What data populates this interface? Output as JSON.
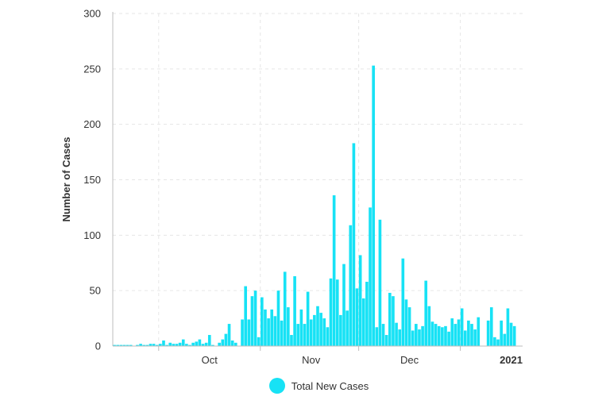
{
  "chart_data": {
    "type": "bar",
    "title": "",
    "xlabel": "",
    "ylabel": "Number of Cases",
    "ylim": [
      0,
      300
    ],
    "yticks": [
      0,
      50,
      100,
      150,
      200,
      250,
      300
    ],
    "x_start": "2020-09-17",
    "x_end": "2021-01-20",
    "x_ticks": [
      {
        "label": "Oct",
        "date": "2020-10-01",
        "bold": false
      },
      {
        "label": "Nov",
        "date": "2020-11-01",
        "bold": false
      },
      {
        "label": "Dec",
        "date": "2020-12-01",
        "bold": false
      },
      {
        "label": "2021",
        "date": "2021-01-01",
        "bold": true
      }
    ],
    "grid": true,
    "legend_position": "bottom",
    "series": [
      {
        "name": "Total New Cases",
        "color": "#17e2f5",
        "points": [
          [
            "2020-09-17",
            1
          ],
          [
            "2020-09-18",
            1
          ],
          [
            "2020-09-19",
            1
          ],
          [
            "2020-09-20",
            1
          ],
          [
            "2020-09-21",
            1
          ],
          [
            "2020-09-22",
            1
          ],
          [
            "2020-09-23",
            0
          ],
          [
            "2020-09-24",
            1
          ],
          [
            "2020-09-25",
            2
          ],
          [
            "2020-09-26",
            1
          ],
          [
            "2020-09-27",
            1
          ],
          [
            "2020-09-28",
            2
          ],
          [
            "2020-09-29",
            2
          ],
          [
            "2020-09-30",
            1
          ],
          [
            "2020-10-01",
            2
          ],
          [
            "2020-10-02",
            5
          ],
          [
            "2020-10-03",
            1
          ],
          [
            "2020-10-04",
            3
          ],
          [
            "2020-10-05",
            2
          ],
          [
            "2020-10-06",
            2
          ],
          [
            "2020-10-07",
            3
          ],
          [
            "2020-10-08",
            6
          ],
          [
            "2020-10-09",
            2
          ],
          [
            "2020-10-10",
            1
          ],
          [
            "2020-10-11",
            3
          ],
          [
            "2020-10-12",
            4
          ],
          [
            "2020-10-13",
            6
          ],
          [
            "2020-10-14",
            2
          ],
          [
            "2020-10-15",
            3
          ],
          [
            "2020-10-16",
            10
          ],
          [
            "2020-10-17",
            1
          ],
          [
            "2020-10-18",
            0
          ],
          [
            "2020-10-19",
            3
          ],
          [
            "2020-10-20",
            6
          ],
          [
            "2020-10-21",
            11
          ],
          [
            "2020-10-22",
            20
          ],
          [
            "2020-10-23",
            5
          ],
          [
            "2020-10-24",
            3
          ],
          [
            "2020-10-25",
            0
          ],
          [
            "2020-10-26",
            24
          ],
          [
            "2020-10-27",
            54
          ],
          [
            "2020-10-28",
            24
          ],
          [
            "2020-10-29",
            45
          ],
          [
            "2020-10-30",
            50
          ],
          [
            "2020-10-31",
            8
          ],
          [
            "2020-11-01",
            44
          ],
          [
            "2020-11-02",
            33
          ],
          [
            "2020-11-03",
            25
          ],
          [
            "2020-11-04",
            33
          ],
          [
            "2020-11-05",
            27
          ],
          [
            "2020-11-06",
            50
          ],
          [
            "2020-11-07",
            23
          ],
          [
            "2020-11-08",
            67
          ],
          [
            "2020-11-09",
            35
          ],
          [
            "2020-11-10",
            10
          ],
          [
            "2020-11-11",
            63
          ],
          [
            "2020-11-12",
            20
          ],
          [
            "2020-11-13",
            33
          ],
          [
            "2020-11-14",
            20
          ],
          [
            "2020-11-15",
            49
          ],
          [
            "2020-11-16",
            24
          ],
          [
            "2020-11-17",
            28
          ],
          [
            "2020-11-18",
            36
          ],
          [
            "2020-11-19",
            30
          ],
          [
            "2020-11-20",
            25
          ],
          [
            "2020-11-21",
            17
          ],
          [
            "2020-11-22",
            61
          ],
          [
            "2020-11-23",
            136
          ],
          [
            "2020-11-24",
            60
          ],
          [
            "2020-11-25",
            28
          ],
          [
            "2020-11-26",
            74
          ],
          [
            "2020-11-27",
            32
          ],
          [
            "2020-11-28",
            109
          ],
          [
            "2020-11-29",
            183
          ],
          [
            "2020-11-30",
            52
          ],
          [
            "2020-12-01",
            82
          ],
          [
            "2020-12-02",
            43
          ],
          [
            "2020-12-03",
            58
          ],
          [
            "2020-12-04",
            125
          ],
          [
            "2020-12-05",
            253
          ],
          [
            "2020-12-06",
            17
          ],
          [
            "2020-12-07",
            114
          ],
          [
            "2020-12-08",
            20
          ],
          [
            "2020-12-09",
            10
          ],
          [
            "2020-12-10",
            48
          ],
          [
            "2020-12-11",
            45
          ],
          [
            "2020-12-12",
            21
          ],
          [
            "2020-12-13",
            15
          ],
          [
            "2020-12-14",
            79
          ],
          [
            "2020-12-15",
            42
          ],
          [
            "2020-12-16",
            35
          ],
          [
            "2020-12-17",
            14
          ],
          [
            "2020-12-18",
            20
          ],
          [
            "2020-12-19",
            15
          ],
          [
            "2020-12-20",
            18
          ],
          [
            "2020-12-21",
            59
          ],
          [
            "2020-12-22",
            36
          ],
          [
            "2020-12-23",
            22
          ],
          [
            "2020-12-24",
            20
          ],
          [
            "2020-12-25",
            18
          ],
          [
            "2020-12-26",
            17
          ],
          [
            "2020-12-27",
            18
          ],
          [
            "2020-12-28",
            13
          ],
          [
            "2020-12-29",
            25
          ],
          [
            "2020-12-30",
            20
          ],
          [
            "2020-12-31",
            24
          ],
          [
            "2021-01-01",
            34
          ],
          [
            "2021-01-02",
            14
          ],
          [
            "2021-01-03",
            23
          ],
          [
            "2021-01-04",
            20
          ],
          [
            "2021-01-05",
            15
          ],
          [
            "2021-01-06",
            26
          ],
          [
            "2021-01-07",
            0
          ],
          [
            "2021-01-08",
            0
          ],
          [
            "2021-01-09",
            23
          ],
          [
            "2021-01-10",
            35
          ],
          [
            "2021-01-11",
            8
          ],
          [
            "2021-01-12",
            6
          ],
          [
            "2021-01-13",
            23
          ],
          [
            "2021-01-14",
            11
          ],
          [
            "2021-01-15",
            34
          ],
          [
            "2021-01-16",
            21
          ],
          [
            "2021-01-17",
            18
          ]
        ]
      }
    ]
  }
}
